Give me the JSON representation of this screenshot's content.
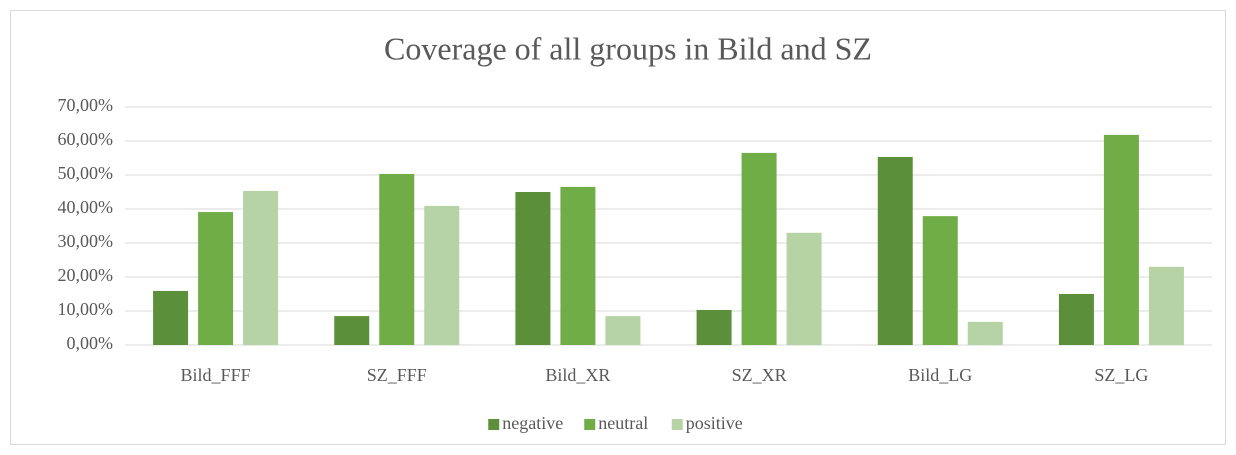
{
  "chart_data": {
    "type": "bar",
    "title": "Coverage of all groups in Bild and SZ",
    "categories": [
      "Bild_FFF",
      "SZ_FFF",
      "Bild_XR",
      "SZ_XR",
      "Bild_LG",
      "SZ_LG"
    ],
    "series": [
      {
        "name": "negative",
        "color": "#5b8f3a",
        "values": [
          15.9,
          8.5,
          45.0,
          10.3,
          55.3,
          15.0
        ]
      },
      {
        "name": "neutral",
        "color": "#70ad47",
        "values": [
          39.1,
          50.3,
          46.5,
          56.5,
          37.9,
          61.8
        ]
      },
      {
        "name": "positive",
        "color": "#b5d3a5",
        "values": [
          45.3,
          40.9,
          8.5,
          33.0,
          6.8,
          23.0
        ]
      }
    ],
    "ylim": [
      0,
      70
    ],
    "yticks": [
      {
        "value": 0,
        "label": "0,00%"
      },
      {
        "value": 10,
        "label": "10,00%"
      },
      {
        "value": 20,
        "label": "20,00%"
      },
      {
        "value": 30,
        "label": "30,00%"
      },
      {
        "value": 40,
        "label": "40,00%"
      },
      {
        "value": 50,
        "label": "50,00%"
      },
      {
        "value": 60,
        "label": "60,00%"
      },
      {
        "value": 70,
        "label": "70,00%"
      }
    ],
    "grid": true,
    "legend": "bottom"
  }
}
